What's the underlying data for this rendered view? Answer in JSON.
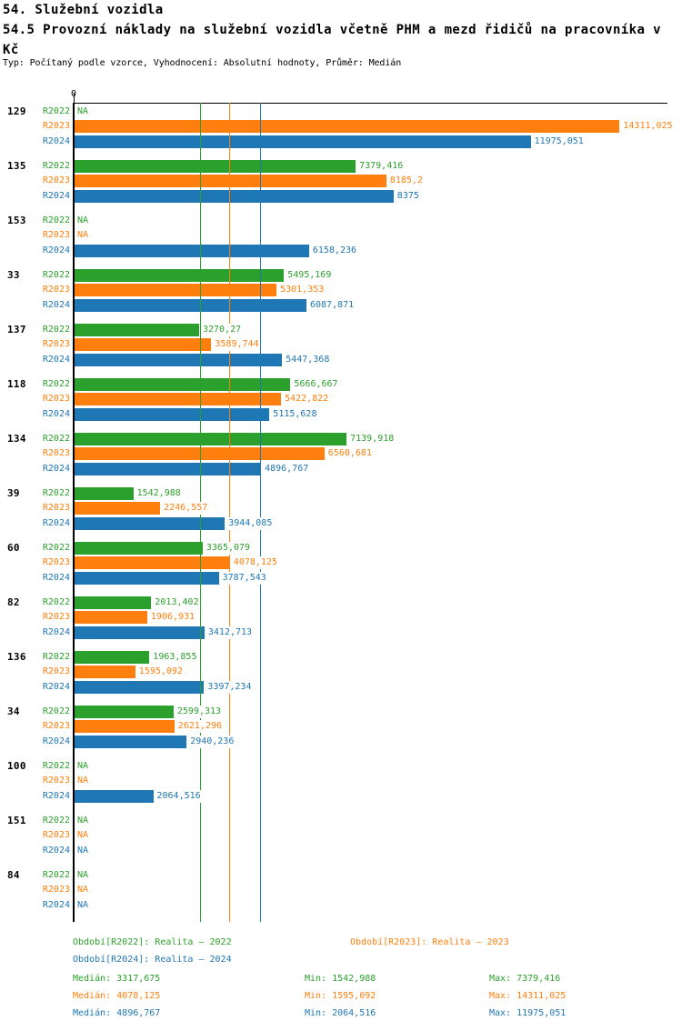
{
  "header": {
    "title_line1": "54. Služební vozidla",
    "title_line2": "54.5 Provozní náklady na služební vozidla včetně PHM a mezd řidičů na pracovníka v Kč",
    "meta": "Typ: Počítaný podle vzorce, Vyhodnocení: Absolutní hodnoty, Průměr: Medián"
  },
  "colors": {
    "R2022": "#2ca02c",
    "R2023": "#ff7f0e",
    "R2024": "#1f77b4",
    "axis": "#000000",
    "background": "#ffffff"
  },
  "chart_data": {
    "type": "bar",
    "orientation": "horizontal",
    "title": "54.5 Provozní náklady na služební vozidla včetně PHM a mezd řidičů na pracovníka v Kč",
    "xlabel": "",
    "ylabel": "",
    "legend_position": "bottom",
    "x_axis": {
      "zero_label": "0",
      "min": 0,
      "scale_max": 15590,
      "grid": false
    },
    "series_order": [
      "R2022",
      "R2023",
      "R2024"
    ],
    "median_lines": [
      {
        "series": "R2022",
        "value": 3317.675
      },
      {
        "series": "R2023",
        "value": 4078.125
      },
      {
        "series": "R2024",
        "value": 4896.767
      }
    ],
    "groups": [
      {
        "id": "129",
        "bars": [
          {
            "series": "R2022",
            "value": null,
            "label": "NA"
          },
          {
            "series": "R2023",
            "value": 14311.025,
            "label": "14311,025"
          },
          {
            "series": "R2024",
            "value": 11975.051,
            "label": "11975,051"
          }
        ]
      },
      {
        "id": "135",
        "bars": [
          {
            "series": "R2022",
            "value": 7379.416,
            "label": "7379,416"
          },
          {
            "series": "R2023",
            "value": 8185.2,
            "label": "8185,2"
          },
          {
            "series": "R2024",
            "value": 8375,
            "label": "8375"
          }
        ]
      },
      {
        "id": "153",
        "bars": [
          {
            "series": "R2022",
            "value": null,
            "label": "NA"
          },
          {
            "series": "R2023",
            "value": null,
            "label": "NA"
          },
          {
            "series": "R2024",
            "value": 6158.236,
            "label": "6158,236"
          }
        ]
      },
      {
        "id": "33",
        "bars": [
          {
            "series": "R2022",
            "value": 5495.169,
            "label": "5495,169"
          },
          {
            "series": "R2023",
            "value": 5301.353,
            "label": "5301,353"
          },
          {
            "series": "R2024",
            "value": 6087.871,
            "label": "6087,871"
          }
        ]
      },
      {
        "id": "137",
        "bars": [
          {
            "series": "R2022",
            "value": 3270.27,
            "label": "3270,27"
          },
          {
            "series": "R2023",
            "value": 3589.744,
            "label": "3589,744"
          },
          {
            "series": "R2024",
            "value": 5447.368,
            "label": "5447,368"
          }
        ]
      },
      {
        "id": "118",
        "bars": [
          {
            "series": "R2022",
            "value": 5666.667,
            "label": "5666,667"
          },
          {
            "series": "R2023",
            "value": 5422.822,
            "label": "5422,822"
          },
          {
            "series": "R2024",
            "value": 5115.628,
            "label": "5115,628"
          }
        ]
      },
      {
        "id": "134",
        "bars": [
          {
            "series": "R2022",
            "value": 7139.918,
            "label": "7139,918"
          },
          {
            "series": "R2023",
            "value": 6560.681,
            "label": "6560,681"
          },
          {
            "series": "R2024",
            "value": 4896.767,
            "label": "4896,767"
          }
        ]
      },
      {
        "id": "39",
        "bars": [
          {
            "series": "R2022",
            "value": 1542.988,
            "label": "1542,988"
          },
          {
            "series": "R2023",
            "value": 2246.557,
            "label": "2246,557"
          },
          {
            "series": "R2024",
            "value": 3944.085,
            "label": "3944,085"
          }
        ]
      },
      {
        "id": "60",
        "bars": [
          {
            "series": "R2022",
            "value": 3365.079,
            "label": "3365,079"
          },
          {
            "series": "R2023",
            "value": 4078.125,
            "label": "4078,125"
          },
          {
            "series": "R2024",
            "value": 3787.543,
            "label": "3787,543"
          }
        ]
      },
      {
        "id": "82",
        "bars": [
          {
            "series": "R2022",
            "value": 2013.402,
            "label": "2013,402"
          },
          {
            "series": "R2023",
            "value": 1906.931,
            "label": "1906,931"
          },
          {
            "series": "R2024",
            "value": 3412.713,
            "label": "3412,713"
          }
        ]
      },
      {
        "id": "136",
        "bars": [
          {
            "series": "R2022",
            "value": 1963.855,
            "label": "1963,855"
          },
          {
            "series": "R2023",
            "value": 1595.092,
            "label": "1595,092"
          },
          {
            "series": "R2024",
            "value": 3397.234,
            "label": "3397,234"
          }
        ]
      },
      {
        "id": "34",
        "bars": [
          {
            "series": "R2022",
            "value": 2599.313,
            "label": "2599,313"
          },
          {
            "series": "R2023",
            "value": 2621.296,
            "label": "2621,296"
          },
          {
            "series": "R2024",
            "value": 2940.236,
            "label": "2940,236"
          }
        ]
      },
      {
        "id": "100",
        "bars": [
          {
            "series": "R2022",
            "value": null,
            "label": "NA"
          },
          {
            "series": "R2023",
            "value": null,
            "label": "NA"
          },
          {
            "series": "R2024",
            "value": 2064.516,
            "label": "2064,516"
          }
        ]
      },
      {
        "id": "151",
        "bars": [
          {
            "series": "R2022",
            "value": null,
            "label": "NA"
          },
          {
            "series": "R2023",
            "value": null,
            "label": "NA"
          },
          {
            "series": "R2024",
            "value": null,
            "label": "NA"
          }
        ]
      },
      {
        "id": "84",
        "bars": [
          {
            "series": "R2022",
            "value": null,
            "label": "NA"
          },
          {
            "series": "R2023",
            "value": null,
            "label": "NA"
          },
          {
            "series": "R2024",
            "value": null,
            "label": "NA"
          }
        ]
      }
    ]
  },
  "legend": {
    "periods": [
      {
        "series": "R2022",
        "label": "Období[R2022]: Realita – 2022"
      },
      {
        "series": "R2023",
        "label": "Období[R2023]: Realita – 2023"
      },
      {
        "series": "R2024",
        "label": "Období[R2024]: Realita – 2024"
      }
    ],
    "stats": [
      {
        "series": "R2022",
        "median": "Medián: 3317,675",
        "min": "Min: 1542,988",
        "max": "Max: 7379,416"
      },
      {
        "series": "R2023",
        "median": "Medián: 4078,125",
        "min": "Min: 1595,092",
        "max": "Max: 14311,025"
      },
      {
        "series": "R2024",
        "median": "Medián: 4896,767",
        "min": "Min: 2064,516",
        "max": "Max: 11975,051"
      }
    ]
  }
}
